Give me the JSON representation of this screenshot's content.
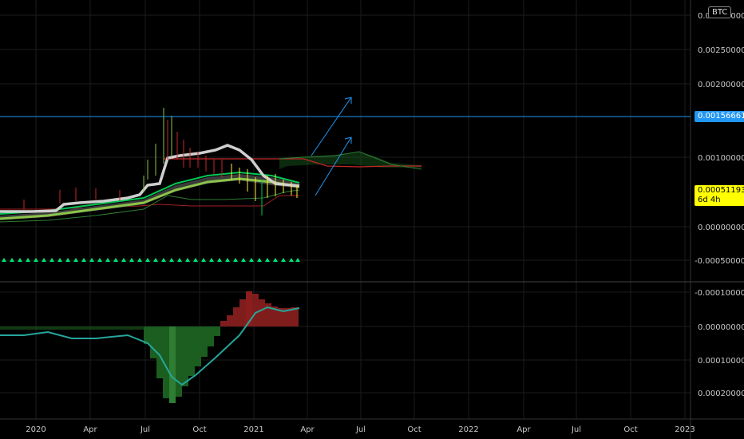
{
  "symbol_badge": "BTC",
  "main_pane": {
    "y_labels": [
      "0.00300000",
      "0.00250000",
      "0.00200000",
      "0.00100000",
      "0.00000000",
      "-0.00050000"
    ],
    "horizontal_line_price": "0.00156661",
    "last_price": "0.00051193",
    "countdown": "6d 4h"
  },
  "oscillator_pane": {
    "y_labels": [
      "-0.00010000",
      "0.00000000",
      "0.00010000",
      "0.00020000"
    ]
  },
  "time_axis": {
    "labels": [
      "2020",
      "Apr",
      "Jul",
      "Oct",
      "2021",
      "Apr",
      "Jul",
      "Oct",
      "2022",
      "Apr",
      "Jul",
      "Oct",
      "2023"
    ]
  },
  "colors": {
    "background": "#000000",
    "grid": "#1c1c1c",
    "horizontal_line": "#2196f3",
    "last_price_tag": "#ffff00",
    "arrows": "#2196f3",
    "ma_fast": "#c8c8c8",
    "cloud_green": "#2e7d32",
    "cloud_red": "#b71c1c",
    "markers": "#00e676",
    "osc_line": "#26a69a"
  },
  "icons": [
    "up-arrow-projection-icon"
  ]
}
